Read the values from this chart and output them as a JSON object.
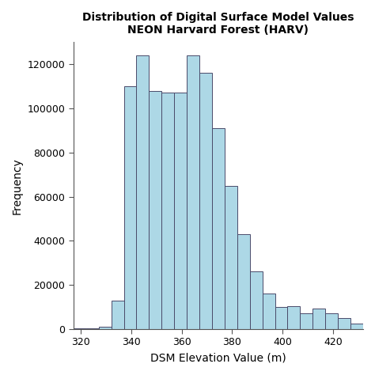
{
  "title_line1": "Distribution of Digital Surface Model Values",
  "title_line2": "NEON Harvard Forest (HARV)",
  "xlabel": "DSM Elevation Value (m)",
  "ylabel": "Frequency",
  "bar_color": "#add8e6",
  "bar_edge_color": "#4a4a6a",
  "background_color": "#ffffff",
  "xlim": [
    317,
    432
  ],
  "ylim": [
    0,
    130000
  ],
  "yticks": [
    0,
    20000,
    40000,
    60000,
    80000,
    100000,
    120000
  ],
  "xticks": [
    320,
    340,
    360,
    380,
    400,
    420
  ],
  "bin_edges": [
    317,
    322,
    327,
    332,
    337,
    342,
    347,
    352,
    357,
    362,
    367,
    372,
    377,
    382,
    387,
    392,
    397,
    402,
    407,
    412,
    417,
    422,
    427,
    432
  ],
  "frequencies": [
    200,
    500,
    1200,
    13000,
    110000,
    124000,
    108000,
    107000,
    107000,
    124000,
    116000,
    91000,
    65000,
    43000,
    26000,
    16000,
    10000,
    10500,
    7000,
    9500,
    7000,
    5000,
    2500
  ]
}
